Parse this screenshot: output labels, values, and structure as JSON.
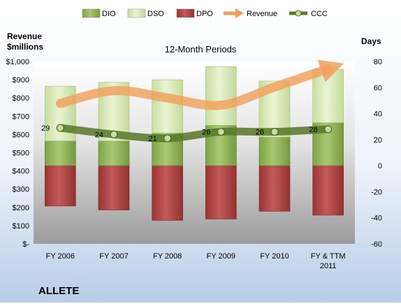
{
  "chart_data": {
    "type": "bar",
    "title": "12-Month Periods",
    "company": "ALLETE",
    "y_left_label": [
      "Revenue",
      "$millions"
    ],
    "y_right_label": "Days",
    "categories": [
      [
        "FY 2006"
      ],
      [
        "FY 2007"
      ],
      [
        "FY 2008"
      ],
      [
        "FY 2009"
      ],
      [
        "FY 2010"
      ],
      [
        "FY & TTM",
        "2011"
      ]
    ],
    "left_ticks": [
      "$-",
      "$100",
      "$200",
      "$300",
      "$400",
      "$500",
      "$600",
      "$700",
      "$800",
      "$900",
      "$1,000"
    ],
    "right_ticks": [
      "-60",
      "-40",
      "-20",
      "0",
      "20",
      "40",
      "60",
      "80"
    ],
    "y_left_range": [
      0,
      1000
    ],
    "y_right_range": [
      -60,
      80
    ],
    "legend": [
      {
        "key": "dio",
        "label": "DIO"
      },
      {
        "key": "dso",
        "label": "DSO"
      },
      {
        "key": "dpo",
        "label": "DPO"
      },
      {
        "key": "revenue",
        "label": "Revenue"
      },
      {
        "key": "ccc",
        "label": "CCC"
      }
    ],
    "series": [
      {
        "key": "dio",
        "axis": "right",
        "values": [
          19,
          19,
          25,
          31,
          22,
          33
        ]
      },
      {
        "key": "dso",
        "axis": "right",
        "values": [
          42,
          45,
          41,
          45,
          43,
          41
        ]
      },
      {
        "key": "dpo",
        "axis": "right",
        "values": [
          -31,
          -34,
          -42,
          -41,
          -35,
          -38
        ]
      },
      {
        "key": "revenue",
        "axis": "left",
        "values": [
          770,
          840,
          800,
          760,
          860,
          960
        ]
      },
      {
        "key": "ccc",
        "axis": "right",
        "values": [
          29,
          24,
          21,
          26,
          26,
          28
        ]
      }
    ],
    "ccc_labels": [
      "29",
      "24",
      "21",
      "26",
      "26",
      "28"
    ],
    "legend_placement": "top",
    "grid": false,
    "colors": {
      "dio": "#8fb45a",
      "dso": "#d6e8b4",
      "dpo": "#b04545",
      "revenue": "#f2a05c",
      "ccc": "#5a7a2c"
    }
  }
}
